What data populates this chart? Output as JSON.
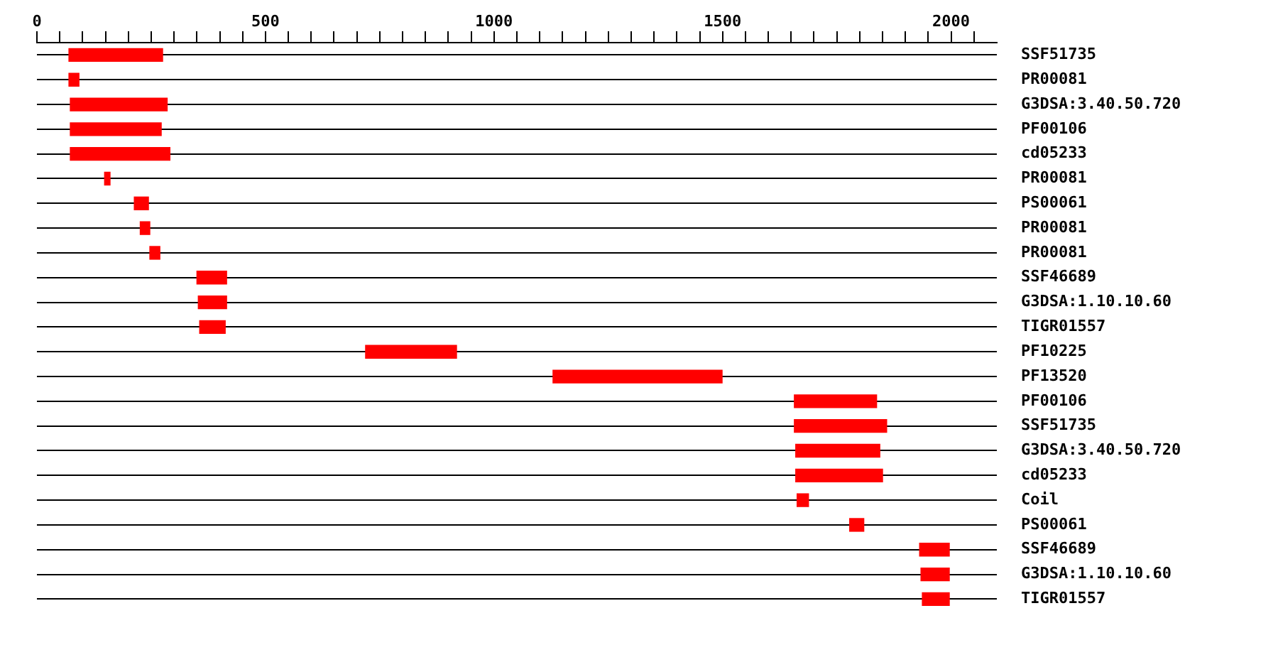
{
  "chart_data": {
    "type": "bar",
    "orientation": "horizontal",
    "categories": [
      "SSF51735",
      "PR00081",
      "G3DSA:3.40.50.720",
      "PF00106",
      "cd05233",
      "PR00081",
      "PS00061",
      "PR00081",
      "PR00081",
      "SSF46689",
      "G3DSA:1.10.10.60",
      "TIGR01557",
      "PF10225",
      "PF13520",
      "PF00106",
      "SSF51735",
      "G3DSA:3.40.50.720",
      "cd05233",
      "Coil",
      "PS00061",
      "SSF46689",
      "G3DSA:1.10.10.60",
      "TIGR01557"
    ],
    "base": [
      70,
      70,
      73,
      73,
      73,
      148,
      213,
      226,
      247,
      350,
      353,
      356,
      719,
      1129,
      1657,
      1657,
      1660,
      1660,
      1663,
      1778,
      1931,
      1934,
      1937
    ],
    "values": [
      205,
      22,
      212,
      199,
      218,
      12,
      31,
      21,
      22,
      65,
      62,
      56,
      199,
      370,
      180,
      202,
      184,
      190,
      25,
      31,
      65,
      62,
      59
    ],
    "color": "#ff0000",
    "xlim": [
      0,
      2100
    ],
    "xticks": [
      0,
      {
        "value": 50,
        "label": null
      },
      {
        "value": 100,
        "label": null
      },
      {
        "value": 150,
        "label": null
      },
      {
        "value": 200,
        "label": null
      },
      {
        "value": 250,
        "label": null
      },
      {
        "value": 300,
        "label": null
      },
      {
        "value": 350,
        "label": null
      },
      {
        "value": 400,
        "label": null
      },
      {
        "value": 450,
        "label": null
      },
      500,
      {
        "value": 550,
        "label": null
      },
      {
        "value": 600,
        "label": null
      },
      {
        "value": 650,
        "label": null
      },
      {
        "value": 700,
        "label": null
      },
      {
        "value": 750,
        "label": null
      },
      {
        "value": 800,
        "label": null
      },
      {
        "value": 850,
        "label": null
      },
      {
        "value": 900,
        "label": null
      },
      {
        "value": 950,
        "label": null
      },
      1000,
      {
        "value": 1050,
        "label": null
      },
      {
        "value": 1100,
        "label": null
      },
      {
        "value": 1150,
        "label": null
      },
      {
        "value": 1200,
        "label": null
      },
      {
        "value": 1250,
        "label": null
      },
      {
        "value": 1300,
        "label": null
      },
      {
        "value": 1350,
        "label": null
      },
      {
        "value": 1400,
        "label": null
      },
      {
        "value": 1450,
        "label": null
      },
      1500,
      {
        "value": 1550,
        "label": null
      },
      {
        "value": 1600,
        "label": null
      },
      {
        "value": 1650,
        "label": null
      },
      {
        "value": 1700,
        "label": null
      },
      {
        "value": 1750,
        "label": null
      },
      {
        "value": 1800,
        "label": null
      },
      {
        "value": 1850,
        "label": null
      },
      {
        "value": 1900,
        "label": null
      },
      {
        "value": 1950,
        "label": null
      },
      2000,
      {
        "value": 2050,
        "label": null
      }
    ],
    "grid": "y",
    "legend": false
  }
}
